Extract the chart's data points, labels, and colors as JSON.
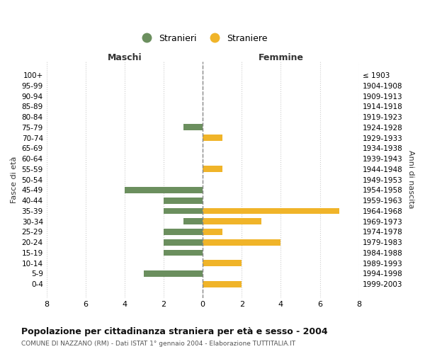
{
  "age_groups": [
    "100+",
    "95-99",
    "90-94",
    "85-89",
    "80-84",
    "75-79",
    "70-74",
    "65-69",
    "60-64",
    "55-59",
    "50-54",
    "45-49",
    "40-44",
    "35-39",
    "30-34",
    "25-29",
    "20-24",
    "15-19",
    "10-14",
    "5-9",
    "0-4"
  ],
  "birth_years": [
    "≤ 1903",
    "1904-1908",
    "1909-1913",
    "1914-1918",
    "1919-1923",
    "1924-1928",
    "1929-1933",
    "1934-1938",
    "1939-1943",
    "1944-1948",
    "1949-1953",
    "1954-1958",
    "1959-1963",
    "1964-1968",
    "1969-1973",
    "1974-1978",
    "1979-1983",
    "1984-1988",
    "1989-1993",
    "1994-1998",
    "1999-2003"
  ],
  "maschi": [
    0,
    0,
    0,
    0,
    0,
    1,
    0,
    0,
    0,
    0,
    0,
    4,
    2,
    2,
    1,
    2,
    2,
    2,
    0,
    3,
    0
  ],
  "femmine": [
    0,
    0,
    0,
    0,
    0,
    0,
    1,
    0,
    0,
    1,
    0,
    0,
    0,
    7,
    3,
    1,
    4,
    0,
    2,
    0,
    2
  ],
  "color_maschi": "#6b8f5e",
  "color_femmine": "#f0b429",
  "title": "Popolazione per cittadinanza straniera per età e sesso - 2004",
  "subtitle": "COMUNE DI NAZZANO (RM) - Dati ISTAT 1° gennaio 2004 - Elaborazione TUTTITALIA.IT",
  "xlabel_left": "Maschi",
  "xlabel_right": "Femmine",
  "ylabel_left": "Fasce di età",
  "ylabel_right": "Anni di nascita",
  "legend_maschi": "Stranieri",
  "legend_femmine": "Straniere",
  "xlim": 8,
  "background_color": "#ffffff",
  "grid_color": "#cccccc"
}
